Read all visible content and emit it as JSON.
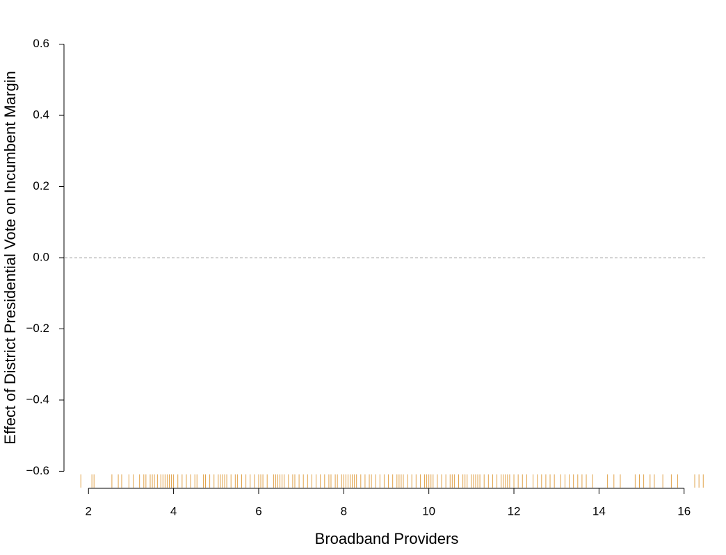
{
  "chart_data": {
    "type": "rug",
    "xlabel": "Broadband Providers",
    "ylabel": "Effect of District Presidential Vote on Incumbent Margin",
    "xlim": [
      1.44,
      16.56
    ],
    "ylim": [
      -0.648,
      0.648
    ],
    "xticks": [
      2,
      4,
      6,
      8,
      10,
      12,
      14,
      16
    ],
    "yticks": [
      {
        "value": -0.6,
        "label": "−0.6"
      },
      {
        "value": -0.4,
        "label": "−0.4"
      },
      {
        "value": -0.2,
        "label": "−0.2"
      },
      {
        "value": 0,
        "label": "0.0"
      },
      0.2,
      0.4,
      0.6
    ],
    "reference_line": 0,
    "color": "#e0a24a",
    "x": [
      1.82,
      2.08,
      2.13,
      2.55,
      2.7,
      2.78,
      2.95,
      3.05,
      3.2,
      3.3,
      3.35,
      3.45,
      3.5,
      3.55,
      3.62,
      3.7,
      3.75,
      3.8,
      3.85,
      3.9,
      3.95,
      4.0,
      4.1,
      4.2,
      4.3,
      4.4,
      4.5,
      4.55,
      4.7,
      4.75,
      4.85,
      4.95,
      5.05,
      5.1,
      5.15,
      5.2,
      5.25,
      5.35,
      5.45,
      5.5,
      5.6,
      5.7,
      5.8,
      5.9,
      6.0,
      6.05,
      6.1,
      6.2,
      6.35,
      6.4,
      6.45,
      6.5,
      6.55,
      6.6,
      6.7,
      6.8,
      6.85,
      6.95,
      7.05,
      7.15,
      7.25,
      7.35,
      7.45,
      7.55,
      7.65,
      7.7,
      7.8,
      7.85,
      7.95,
      8.0,
      8.05,
      8.1,
      8.15,
      8.2,
      8.25,
      8.3,
      8.4,
      8.5,
      8.6,
      8.65,
      8.75,
      8.85,
      8.95,
      9.05,
      9.15,
      9.25,
      9.3,
      9.35,
      9.4,
      9.5,
      9.6,
      9.7,
      9.8,
      9.9,
      9.95,
      10.0,
      10.05,
      10.1,
      10.2,
      10.3,
      10.4,
      10.5,
      10.55,
      10.6,
      10.7,
      10.8,
      10.85,
      10.9,
      11.0,
      11.05,
      11.1,
      11.15,
      11.2,
      11.3,
      11.4,
      11.5,
      11.6,
      11.7,
      11.75,
      11.8,
      11.85,
      11.9,
      12.0,
      12.1,
      12.2,
      12.3,
      12.45,
      12.55,
      12.65,
      12.75,
      12.85,
      12.95,
      13.1,
      13.2,
      13.3,
      13.4,
      13.5,
      13.6,
      13.7,
      13.85,
      14.2,
      14.35,
      14.5,
      14.85,
      14.95,
      15.05,
      15.2,
      15.3,
      15.5,
      15.7,
      15.85,
      16.25,
      16.35,
      16.45
    ]
  }
}
